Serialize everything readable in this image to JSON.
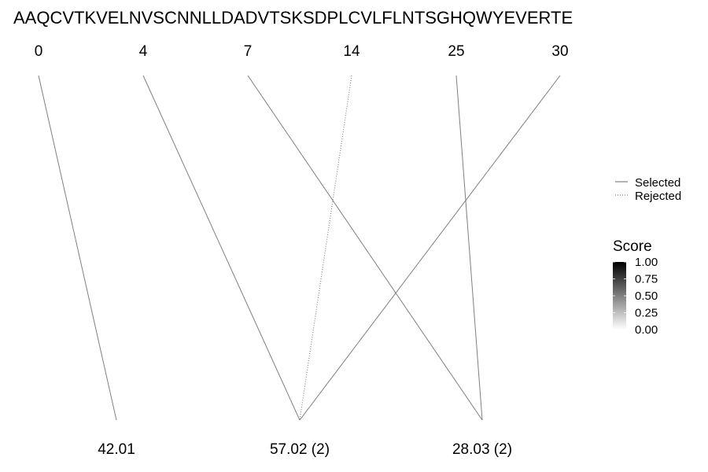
{
  "chart_data": {
    "type": "diagram",
    "sequence": "AAQCVTKVELNVSCNNLLDADVTSKSDPLCVLFLNTSGHQWYEVERTE",
    "top_positions": [
      "0",
      "4",
      "7",
      "14",
      "25",
      "30"
    ],
    "bottom_masses": [
      "42.01",
      "57.02 (2)",
      "28.03 (2)"
    ],
    "links": [
      {
        "from": 0,
        "to": 0,
        "status": "selected"
      },
      {
        "from": 1,
        "to": 1,
        "status": "selected"
      },
      {
        "from": 2,
        "to": 2,
        "status": "selected"
      },
      {
        "from": 3,
        "to": 1,
        "status": "rejected"
      },
      {
        "from": 4,
        "to": 2,
        "status": "selected"
      },
      {
        "from": 5,
        "to": 1,
        "status": "selected"
      }
    ],
    "legend": {
      "linetype_entries": [
        {
          "label": "Selected",
          "style": "solid"
        },
        {
          "label": "Rejected",
          "style": "dotted"
        }
      ],
      "colorbar": {
        "title": "Score",
        "ticks": [
          "1.00",
          "0.75",
          "0.50",
          "0.25",
          "0.00"
        ],
        "range": [
          0,
          1
        ],
        "low_color": "#ffffff",
        "high_color": "#000000"
      }
    },
    "line_color": "#7f7f7f"
  }
}
